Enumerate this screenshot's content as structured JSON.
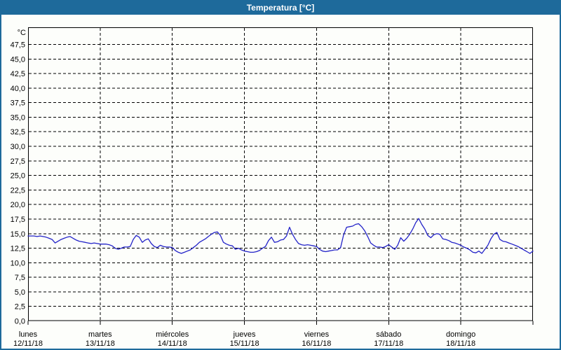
{
  "window": {
    "title": "Temperatura [°C]"
  },
  "colors": {
    "title_bar": "#1e6a9b",
    "window_border": "#1e6a9b",
    "background": "#fdfefb",
    "grid": "#000000",
    "frame": "#000000",
    "series_line": "#2222c8",
    "title_text": "#ffffff",
    "axis_text": "#000000"
  },
  "chart_data": {
    "type": "line",
    "title": "Temperatura [°C]",
    "ylabel": "°C",
    "unit_corner_label": "°C",
    "grid": "dashed",
    "legend": "none",
    "y_axis": {
      "min": 0,
      "max": 50,
      "tick_step": 2.5,
      "tick_values": [
        47.5,
        45.0,
        42.5,
        40.0,
        37.5,
        35.0,
        32.5,
        30.0,
        27.5,
        25.0,
        22.5,
        20.0,
        17.5,
        15.0,
        12.5,
        10.0,
        7.5,
        5.0,
        2.5,
        0.0
      ],
      "tick_labels": [
        "47,5",
        "45,0",
        "42,5",
        "40,0",
        "37,5",
        "35,0",
        "32,5",
        "30,0",
        "27,5",
        "25,0",
        "22,5",
        "20,0",
        "17,5",
        "15,0",
        "12,5",
        "10,0",
        "7,5",
        "5,0",
        "2,5",
        "0,0"
      ]
    },
    "x_axis": {
      "days": [
        {
          "name": "lunes",
          "date": "12/11/18"
        },
        {
          "name": "martes",
          "date": "13/11/18"
        },
        {
          "name": "miércoles",
          "date": "14/11/18"
        },
        {
          "name": "jueves",
          "date": "15/11/18"
        },
        {
          "name": "viernes",
          "date": "16/11/18"
        },
        {
          "name": "sábado",
          "date": "17/11/18"
        },
        {
          "name": "domingo",
          "date": "18/11/18"
        }
      ],
      "points_per_day": 24
    },
    "series": [
      {
        "name": "Temperatura",
        "color": "#2222c8",
        "values": [
          14.6,
          14.6,
          14.6,
          14.5,
          14.6,
          14.5,
          14.4,
          14.2,
          14.0,
          13.4,
          13.7,
          14.0,
          14.2,
          14.4,
          14.5,
          14.2,
          13.9,
          13.7,
          13.6,
          13.5,
          13.4,
          13.3,
          13.4,
          13.3,
          13.2,
          13.2,
          13.2,
          13.1,
          12.9,
          12.5,
          12.3,
          12.5,
          12.7,
          12.7,
          12.8,
          14.0,
          14.7,
          14.4,
          13.5,
          13.9,
          14.1,
          13.3,
          12.8,
          12.6,
          13.0,
          12.8,
          12.7,
          12.7,
          12.6,
          12.1,
          11.8,
          11.6,
          11.8,
          12.0,
          12.2,
          12.6,
          13.0,
          13.5,
          13.8,
          14.1,
          14.5,
          14.9,
          15.2,
          15.3,
          14.7,
          13.5,
          13.2,
          13.0,
          12.9,
          12.3,
          12.5,
          12.2,
          12.0,
          11.9,
          11.8,
          11.8,
          11.9,
          12.1,
          12.5,
          12.8,
          13.8,
          14.4,
          13.5,
          13.6,
          13.9,
          14.0,
          14.6,
          16.1,
          14.9,
          14.0,
          13.3,
          13.1,
          13.0,
          13.1,
          13.0,
          12.9,
          12.8,
          12.3,
          12.0,
          11.9,
          12.0,
          12.1,
          12.2,
          12.2,
          12.6,
          14.8,
          16.1,
          16.2,
          16.3,
          16.6,
          16.7,
          16.2,
          15.5,
          14.5,
          13.4,
          13.0,
          12.7,
          12.7,
          12.6,
          12.8,
          13.1,
          12.7,
          12.3,
          13.0,
          14.3,
          13.7,
          14.2,
          14.9,
          15.8,
          16.9,
          17.6,
          16.6,
          15.8,
          14.7,
          14.3,
          14.8,
          15.0,
          14.9,
          14.1,
          14.0,
          13.8,
          13.5,
          13.4,
          13.2,
          13.0,
          12.7,
          12.5,
          12.2,
          11.8,
          11.7,
          12.0,
          11.6,
          12.3,
          13.0,
          14.1,
          14.9,
          15.2,
          14.0,
          13.7,
          13.6,
          13.4,
          13.2,
          13.0,
          12.8,
          12.5,
          12.2,
          11.9,
          11.6,
          12.0
        ]
      }
    ]
  }
}
